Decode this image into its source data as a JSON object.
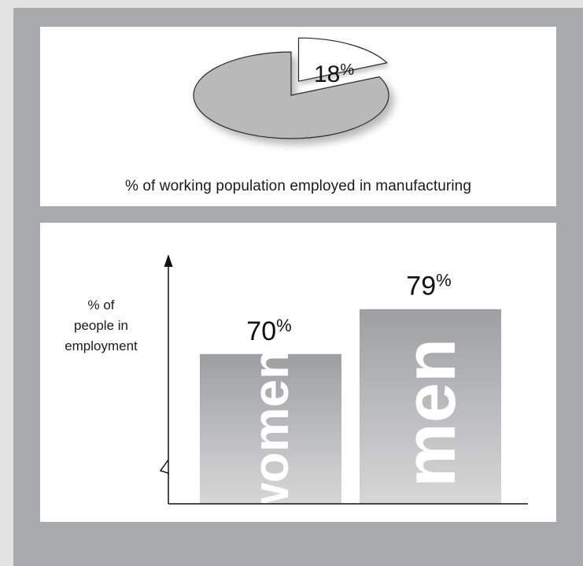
{
  "chart_data": [
    {
      "type": "pie",
      "slices": [
        {
          "label": "18%",
          "value": 18,
          "color": "#ffffff"
        },
        {
          "label": "",
          "value": 82,
          "color": "#b9b9b9"
        }
      ],
      "caption": "% of working population employed in manufacturing",
      "exploded_slice": "18%"
    },
    {
      "type": "bar",
      "categories": [
        "women",
        "men"
      ],
      "values": [
        70,
        79
      ],
      "value_labels": [
        {
          "number": "70",
          "unit": "%"
        },
        {
          "number": "79",
          "unit": "%"
        }
      ],
      "ylabel_lines": [
        "% of",
        "people in",
        "employment"
      ],
      "ylim": [
        40,
        90
      ],
      "axis_break": true,
      "bar_color_top": "#9e9fa1",
      "bar_color_bottom": "#d7d7d8",
      "bar_text_color": "#ffffff"
    }
  ]
}
